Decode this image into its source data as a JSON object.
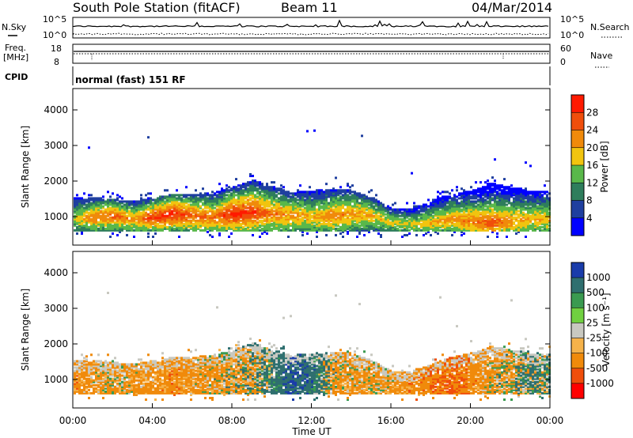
{
  "header": {
    "station": "South Pole Station (fitACF)",
    "beam": "Beam 11",
    "date": "04/Mar/2014"
  },
  "top_panels": {
    "nsky_label": "N.Sky",
    "nsearch_label": "N.Search",
    "noise_ticks": [
      "10^5",
      "10^0"
    ],
    "freq_label_1": "Freq.",
    "freq_label_2": "[MHz]",
    "freq_ticks": [
      "18",
      "8"
    ],
    "nave_label": "Nave",
    "nave_ticks": [
      "60",
      "0"
    ],
    "cpid_label": "CPID",
    "cpid_text": "normal (fast) 151 RF"
  },
  "colors": {
    "power_scale": [
      "#0000ff",
      "#1f3f9f",
      "#2e7d5c",
      "#59b84a",
      "#f1c40f",
      "#f08a0b",
      "#f04e0b",
      "#ff1a00"
    ],
    "velocity_scale": [
      "#ff0000",
      "#f04e0b",
      "#f08a0b",
      "#f5b24a",
      "#c8c8c0",
      "#70d040",
      "#3a9a50",
      "#2f6f6f",
      "#1a3caa"
    ]
  },
  "chart_data": [
    {
      "type": "heatmap",
      "name": "power",
      "ylabel": "Slant Range [km]",
      "xlabel": "",
      "ylim": [
        200,
        4600
      ],
      "y_ticks": [
        "4000",
        "3000",
        "2000",
        "1000"
      ],
      "x_ticks": [
        "00:00",
        "04:00",
        "08:00",
        "12:00",
        "16:00",
        "20:00",
        "00:00"
      ],
      "colorbar_label": "Power [dB]",
      "colorbar_ticks": [
        "28",
        "24",
        "20",
        "16",
        "12",
        "8",
        "4"
      ],
      "x_hours": [
        0,
        1,
        2,
        3,
        4,
        5,
        6,
        7,
        8,
        9,
        10,
        11,
        12,
        13,
        14,
        15,
        16,
        17,
        18,
        19,
        20,
        21,
        22,
        23
      ],
      "echo_core_km": [
        900,
        950,
        1000,
        900,
        950,
        1050,
        1000,
        950,
        1050,
        1100,
        1050,
        1000,
        950,
        1000,
        1050,
        1000,
        800,
        750,
        800,
        900,
        850,
        800,
        850,
        900
      ],
      "echo_top_km": [
        1500,
        1500,
        1450,
        1400,
        1500,
        1600,
        1600,
        1650,
        1800,
        2000,
        1800,
        1650,
        1700,
        1750,
        1700,
        1500,
        1200,
        1200,
        1400,
        1600,
        1700,
        1900,
        1800,
        1700
      ],
      "peak_db": [
        14,
        22,
        24,
        20,
        26,
        28,
        24,
        22,
        28,
        26,
        22,
        20,
        18,
        22,
        20,
        18,
        16,
        16,
        18,
        20,
        22,
        24,
        20,
        18
      ]
    },
    {
      "type": "heatmap",
      "name": "velocity",
      "ylabel": "Slant Range [km]",
      "xlabel": "Time UT",
      "ylim": [
        200,
        4600
      ],
      "y_ticks": [
        "4000",
        "3000",
        "2000",
        "1000"
      ],
      "x_ticks": [
        "00:00",
        "04:00",
        "08:00",
        "12:00",
        "16:00",
        "20:00",
        "00:00"
      ],
      "colorbar_label": "Velocity [m s⁻¹]",
      "colorbar_ticks": [
        "1000",
        "500",
        "100",
        "25",
        "-25",
        "-100",
        "-500",
        "-1000"
      ],
      "x_hours": [
        0,
        1,
        2,
        3,
        4,
        5,
        6,
        7,
        8,
        9,
        10,
        11,
        12,
        13,
        14,
        15,
        16,
        17,
        18,
        19,
        20,
        21,
        22,
        23
      ],
      "mean_velocity_ms": [
        -300,
        -200,
        -150,
        -200,
        -250,
        -300,
        -200,
        -150,
        -100,
        -50,
        200,
        500,
        300,
        -100,
        -200,
        -150,
        -200,
        -300,
        -400,
        -500,
        -300,
        -150,
        -100,
        100
      ]
    }
  ]
}
